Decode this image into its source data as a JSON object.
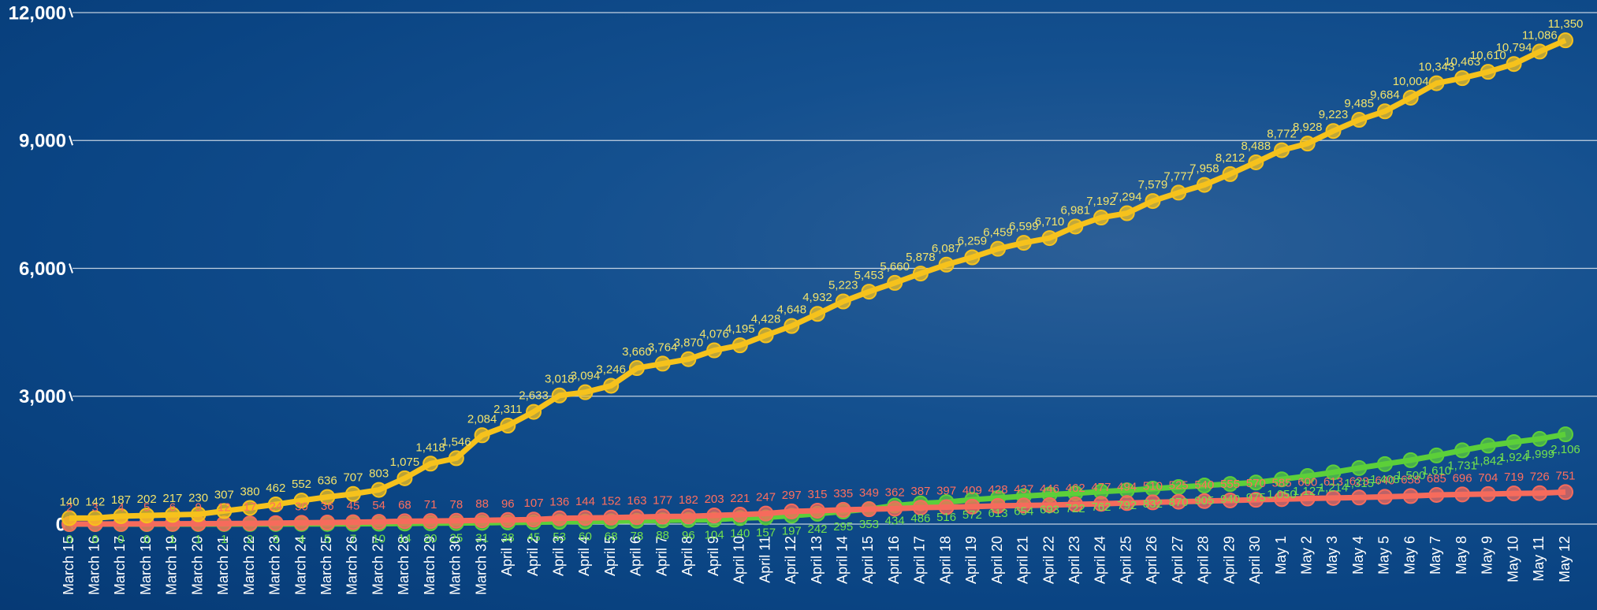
{
  "chart_data": {
    "type": "line",
    "categories": [
      "March 15",
      "March 16",
      "March 17",
      "March 18",
      "March 19",
      "March 20",
      "March 21",
      "March 22",
      "March 23",
      "March 24",
      "March 25",
      "March 26",
      "March 27",
      "March 28",
      "March 29",
      "March 30",
      "March 31",
      "April 1",
      "April 2",
      "April 3",
      "April 4",
      "April 5",
      "April 6",
      "April 7",
      "April 8",
      "April 9",
      "April 10",
      "April 11",
      "April 12",
      "April 13",
      "April 14",
      "April 15",
      "April 16",
      "April 17",
      "April 18",
      "April 19",
      "April 20",
      "April 21",
      "April 22",
      "April 23",
      "April 24",
      "April 25",
      "April 26",
      "April 27",
      "April 28",
      "April 29",
      "April 30",
      "May 1",
      "May 2",
      "May 3",
      "May 4",
      "May 5",
      "May 6",
      "May 7",
      "May 8",
      "May 9",
      "May 10",
      "May 11",
      "May 12"
    ],
    "series": [
      {
        "color": "#f6c21c",
        "label_color": "#f2e36a",
        "label_side": "above",
        "values": [
          140,
          142,
          187,
          202,
          217,
          230,
          307,
          380,
          462,
          552,
          636,
          707,
          803,
          1075,
          1418,
          1546,
          2084,
          2311,
          2633,
          3018,
          3094,
          3246,
          3660,
          3764,
          3870,
          4076,
          4195,
          4428,
          4648,
          4932,
          5223,
          5453,
          5660,
          5878,
          6087,
          6259,
          6459,
          6599,
          6710,
          6981,
          7192,
          7294,
          7579,
          7777,
          7958,
          8212,
          8488,
          8772,
          8928,
          9223,
          9485,
          9684,
          10004,
          10343,
          10463,
          10610,
          10794,
          11086,
          11350
        ],
        "value_labels": [
          "140",
          "142",
          "187",
          "202",
          "217",
          "230",
          "307",
          "380",
          "462",
          "552",
          "636",
          "707",
          "803",
          "1,075",
          "1,418",
          "1,546",
          "2,084",
          "2,311",
          "2,633",
          "3,018",
          "3,094",
          "3,246",
          "3,660",
          "3,764",
          "3,870",
          "4,076",
          "4,195",
          "4,428",
          "4,648",
          "4,932",
          "5,223",
          "5,453",
          "5,660",
          "5,878",
          "6,087",
          "6,259",
          "6,459",
          "6,599",
          "6,710",
          "6,981",
          "7,192",
          "7,294",
          "7,579",
          "7,777",
          "7,958",
          "8,212",
          "8,488",
          "8,772",
          "8,928",
          "9,223",
          "9,485",
          "9,684",
          "10,004",
          "10,343",
          "10,463",
          "10,610",
          "10,794",
          "11,086",
          "11,350"
        ]
      },
      {
        "color": "#f56b5c",
        "label_color": "#ff6e5e",
        "label_side": "above",
        "values": [
          2,
          3,
          4,
          5,
          6,
          9,
          12,
          17,
          24,
          30,
          36,
          45,
          54,
          68,
          71,
          78,
          88,
          96,
          107,
          136,
          144,
          152,
          163,
          177,
          182,
          203,
          221,
          247,
          297,
          315,
          335,
          349,
          362,
          387,
          397,
          409,
          428,
          437,
          446,
          462,
          477,
          494,
          510,
          525,
          540,
          555,
          570,
          585,
          600,
          613,
          623,
          640,
          658,
          685,
          696,
          704,
          719,
          726,
          751
        ]
      },
      {
        "color": "#5ccf3a",
        "label_color": "#72e24c",
        "label_side": "below",
        "values": [
          0,
          0,
          0,
          0,
          1,
          1,
          1,
          2,
          3,
          4,
          5,
          7,
          10,
          14,
          20,
          25,
          31,
          38,
          45,
          53,
          60,
          68,
          78,
          88,
          96,
          104,
          140,
          157,
          197,
          242,
          295,
          353,
          434,
          486,
          516,
          572,
          613,
          654,
          693,
          722,
          762,
          792,
          832,
          870,
          905,
          940,
          975,
          1050,
          1127,
          1214,
          1315,
          1408,
          1500,
          1610,
          1731,
          1842,
          1924,
          1999,
          2106
        ],
        "value_labels": [
          "0",
          "0",
          "0",
          "0",
          "1",
          "1",
          "1",
          "2",
          "3",
          "4",
          "5",
          "7",
          "10",
          "14",
          "20",
          "25",
          "31",
          "38",
          "45",
          "53",
          "60",
          "68",
          "78",
          "88",
          "96",
          "104",
          "140",
          "157",
          "197",
          "242",
          "295",
          "353",
          "434",
          "486",
          "516",
          "572",
          "613",
          "654",
          "693",
          "722",
          "762",
          "792",
          "832",
          "870",
          "905",
          "940",
          "975",
          "1,050",
          "1,127",
          "1,214",
          "1,315",
          "1,408",
          "1,500",
          "1,610",
          "1,731",
          "1,842",
          "1,924",
          "1,999",
          "2,106"
        ]
      }
    ],
    "ylim": [
      0,
      12000
    ],
    "yticks": [
      0,
      {
        "value": 3000,
        "label": "3,000"
      },
      {
        "value": 6000,
        "label": "6,000"
      },
      {
        "value": 9000,
        "label": "9,000"
      },
      {
        "value": 12000,
        "label": "12,000"
      }
    ],
    "grid": true
  }
}
